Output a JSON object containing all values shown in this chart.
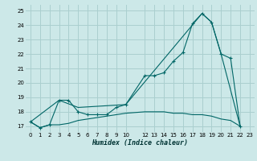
{
  "xlabel": "Humidex (Indice chaleur)",
  "bg_color": "#cce8e8",
  "grid_color": "#aacfcf",
  "line_color": "#006666",
  "xlim": [
    -0.5,
    23.5
  ],
  "ylim": [
    16.6,
    25.4
  ],
  "xticks": [
    0,
    1,
    2,
    3,
    4,
    5,
    6,
    7,
    8,
    9,
    10,
    12,
    13,
    14,
    15,
    16,
    17,
    18,
    19,
    20,
    21,
    22,
    23
  ],
  "xtick_labels": [
    "0",
    "1",
    "2",
    "3",
    "4",
    "5",
    "6",
    "7",
    "8",
    "9",
    "10",
    "12",
    "13",
    "14",
    "15",
    "16",
    "17",
    "18",
    "19",
    "20",
    "21",
    "22",
    "23"
  ],
  "yticks": [
    17,
    18,
    19,
    20,
    21,
    22,
    23,
    24,
    25
  ],
  "series1": [
    [
      0,
      17.3
    ],
    [
      1,
      16.9
    ],
    [
      2,
      17.1
    ],
    [
      3,
      18.8
    ],
    [
      4,
      18.8
    ],
    [
      5,
      18.0
    ],
    [
      6,
      17.8
    ],
    [
      7,
      17.8
    ],
    [
      8,
      17.8
    ],
    [
      9,
      18.3
    ],
    [
      10,
      18.5
    ],
    [
      12,
      20.5
    ],
    [
      13,
      20.5
    ],
    [
      14,
      20.7
    ],
    [
      15,
      21.5
    ],
    [
      16,
      22.1
    ],
    [
      17,
      24.1
    ],
    [
      18,
      24.8
    ],
    [
      19,
      24.2
    ],
    [
      20,
      22.0
    ],
    [
      21,
      21.7
    ],
    [
      22,
      17.0
    ]
  ],
  "series2": [
    [
      0,
      17.3
    ],
    [
      3,
      18.8
    ],
    [
      5,
      18.3
    ],
    [
      10,
      18.5
    ],
    [
      18,
      24.8
    ],
    [
      19,
      24.2
    ],
    [
      20,
      22.0
    ],
    [
      22,
      17.0
    ]
  ],
  "series3": [
    [
      0,
      17.3
    ],
    [
      1,
      16.9
    ],
    [
      2,
      17.1
    ],
    [
      3,
      17.1
    ],
    [
      4,
      17.2
    ],
    [
      5,
      17.4
    ],
    [
      6,
      17.5
    ],
    [
      7,
      17.6
    ],
    [
      8,
      17.7
    ],
    [
      9,
      17.8
    ],
    [
      10,
      17.9
    ],
    [
      12,
      18.0
    ],
    [
      13,
      18.0
    ],
    [
      14,
      18.0
    ],
    [
      15,
      17.9
    ],
    [
      16,
      17.9
    ],
    [
      17,
      17.8
    ],
    [
      18,
      17.8
    ],
    [
      19,
      17.7
    ],
    [
      20,
      17.5
    ],
    [
      21,
      17.4
    ],
    [
      22,
      17.0
    ]
  ]
}
